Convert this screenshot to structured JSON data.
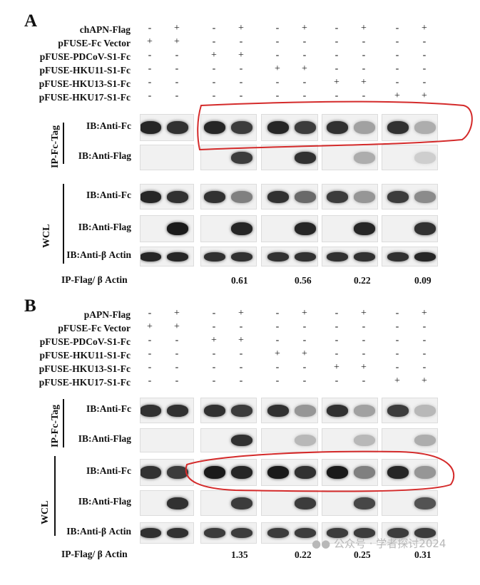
{
  "panels": [
    {
      "id": "A",
      "label": "A",
      "conditions": [
        {
          "label": "chAPN-Flag",
          "signs": [
            "-",
            "+",
            "-",
            "+",
            "-",
            "+",
            "-",
            "+",
            "-",
            "+"
          ]
        },
        {
          "label": "pFUSE-Fc Vector",
          "signs": [
            "+",
            "+",
            "-",
            "-",
            "-",
            "-",
            "-",
            "-",
            "-",
            "-"
          ]
        },
        {
          "label": "pFUSE-PDCoV-S1-Fc",
          "signs": [
            "-",
            "-",
            "+",
            "+",
            "-",
            "-",
            "-",
            "-",
            "-",
            "-"
          ]
        },
        {
          "label": "pFUSE-HKU11-S1-Fc",
          "signs": [
            "-",
            "-",
            "-",
            "-",
            "+",
            "+",
            "-",
            "-",
            "-",
            "-"
          ]
        },
        {
          "label": "pFUSE-HKU13-S1-Fc",
          "signs": [
            "-",
            "-",
            "-",
            "-",
            "-",
            "-",
            "+",
            "+",
            "-",
            "-"
          ]
        },
        {
          "label": "pFUSE-HKU17-S1-Fc",
          "signs": [
            "-",
            "-",
            "-",
            "-",
            "-",
            "-",
            "-",
            "-",
            "+",
            "+"
          ]
        }
      ],
      "group_labels": {
        "ip": "IP-Fc-Tag",
        "wcl": "WCL"
      },
      "blots": [
        {
          "label": "IB:Anti-Fc",
          "intensity": [
            0.9,
            0.85,
            0.9,
            0.8,
            0.9,
            0.8,
            0.85,
            0.35,
            0.85,
            0.3
          ]
        },
        {
          "label": "IB:Anti-Flag",
          "intensity": [
            0,
            0,
            0,
            0.8,
            0,
            0.85,
            0,
            0.3,
            0,
            0.15
          ]
        },
        {
          "label": "IB:Anti-Fc",
          "intensity": [
            0.9,
            0.85,
            0.85,
            0.5,
            0.85,
            0.6,
            0.8,
            0.4,
            0.8,
            0.45
          ]
        },
        {
          "label": "IB:Anti-Flag",
          "intensity": [
            0,
            0.95,
            0,
            0.9,
            0,
            0.9,
            0,
            0.9,
            0,
            0.85
          ]
        },
        {
          "label": "IB:Anti-β Actin",
          "intensity": [
            0.9,
            0.9,
            0.85,
            0.85,
            0.85,
            0.85,
            0.85,
            0.85,
            0.85,
            0.9
          ]
        }
      ],
      "ratio_label": "IP-Flag/ β Actin",
      "ratios": [
        "0.61",
        "0.56",
        "0.22",
        "0.09"
      ],
      "highlight_color": "#d42a2a"
    },
    {
      "id": "B",
      "label": "B",
      "conditions": [
        {
          "label": "pAPN-Flag",
          "signs": [
            "-",
            "+",
            "-",
            "+",
            "-",
            "+",
            "-",
            "+",
            "-",
            "+"
          ]
        },
        {
          "label": "pFUSE-Fc Vector",
          "signs": [
            "+",
            "+",
            "-",
            "-",
            "-",
            "-",
            "-",
            "-",
            "-",
            "-"
          ]
        },
        {
          "label": "pFUSE-PDCoV-S1-Fc",
          "signs": [
            "-",
            "-",
            "+",
            "+",
            "-",
            "-",
            "-",
            "-",
            "-",
            "-"
          ]
        },
        {
          "label": "pFUSE-HKU11-S1-Fc",
          "signs": [
            "-",
            "-",
            "-",
            "-",
            "+",
            "+",
            "-",
            "-",
            "-",
            "-"
          ]
        },
        {
          "label": "pFUSE-HKU13-S1-Fc",
          "signs": [
            "-",
            "-",
            "-",
            "-",
            "-",
            "-",
            "+",
            "+",
            "-",
            "-"
          ]
        },
        {
          "label": "pFUSE-HKU17-S1-Fc",
          "signs": [
            "-",
            "-",
            "-",
            "-",
            "-",
            "-",
            "-",
            "-",
            "+",
            "+"
          ]
        }
      ],
      "group_labels": {
        "ip": "IP-Fc-Tag",
        "wcl": "WCL"
      },
      "blots": [
        {
          "label": "IB:Anti-Fc",
          "intensity": [
            0.85,
            0.85,
            0.85,
            0.8,
            0.85,
            0.4,
            0.85,
            0.35,
            0.8,
            0.25
          ]
        },
        {
          "label": "IB:Anti-Flag",
          "intensity": [
            0,
            0,
            0,
            0.85,
            0,
            0.25,
            0,
            0.25,
            0,
            0.3
          ]
        },
        {
          "label": "IB:Anti-Fc",
          "intensity": [
            0.85,
            0.8,
            0.95,
            0.9,
            0.95,
            0.85,
            0.95,
            0.5,
            0.9,
            0.4
          ]
        },
        {
          "label": "IB:Anti-Flag",
          "intensity": [
            0,
            0.85,
            0,
            0.8,
            0,
            0.8,
            0,
            0.75,
            0,
            0.7
          ]
        },
        {
          "label": "IB:Anti-β Actin",
          "intensity": [
            0.85,
            0.85,
            0.8,
            0.8,
            0.8,
            0.8,
            0.8,
            0.8,
            0.8,
            0.8
          ]
        }
      ],
      "ratio_label": "IP-Flag/ β Actin",
      "ratios": [
        "1.35",
        "0.22",
        "0.25",
        "0.31"
      ],
      "highlight_color": "#d42a2a"
    }
  ],
  "watermark": "公众号 · 学者探讨2024",
  "watermark_icon": "wechat-icon"
}
